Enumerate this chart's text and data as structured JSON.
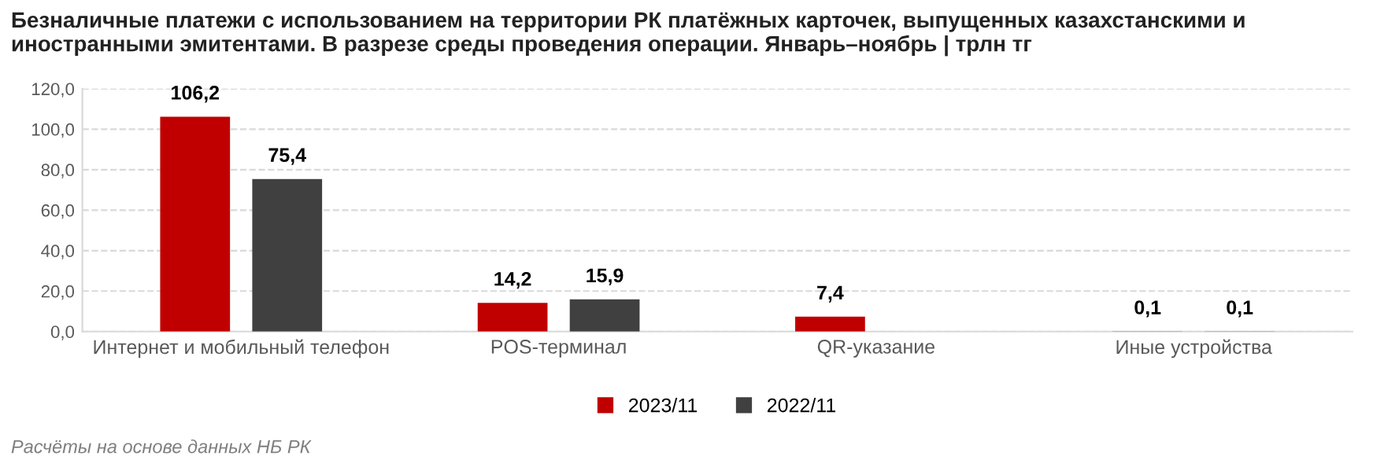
{
  "chart_data": {
    "type": "bar",
    "title": "Безналичные платежи с использованием на территории РК платёжных карточек, выпущенных казахстанскими и иностранными эмитентами. В разрезе среды проведения операции. Январь–ноябрь | трлн тг",
    "categories": [
      "Интернет и мобильный телефон",
      "POS-терминал",
      "QR-указание",
      "Иные устройства"
    ],
    "series": [
      {
        "name": "2023/11",
        "color": "#c00000",
        "values": [
          106.2,
          14.2,
          7.4,
          0.1
        ],
        "value_labels": [
          "106,2",
          "14,2",
          "7,4",
          "0,1"
        ]
      },
      {
        "name": "2022/11",
        "color": "#404040",
        "values": [
          75.4,
          15.9,
          null,
          0.1
        ],
        "value_labels": [
          "75,4",
          "15,9",
          null,
          "0,1"
        ]
      }
    ],
    "ylim": [
      0,
      120
    ],
    "yticks": [
      {
        "value": 0,
        "label": "0,0"
      },
      {
        "value": 20,
        "label": "20,0"
      },
      {
        "value": 40,
        "label": "40,0"
      },
      {
        "value": 60,
        "label": "60,0"
      },
      {
        "value": 80,
        "label": "80,0"
      },
      {
        "value": 100,
        "label": "100,0"
      },
      {
        "value": 120,
        "label": "120,0"
      }
    ],
    "grid": "y",
    "legend": "bottom",
    "annotations": [
      "Расчёты на основе данных НБ РК"
    ]
  }
}
